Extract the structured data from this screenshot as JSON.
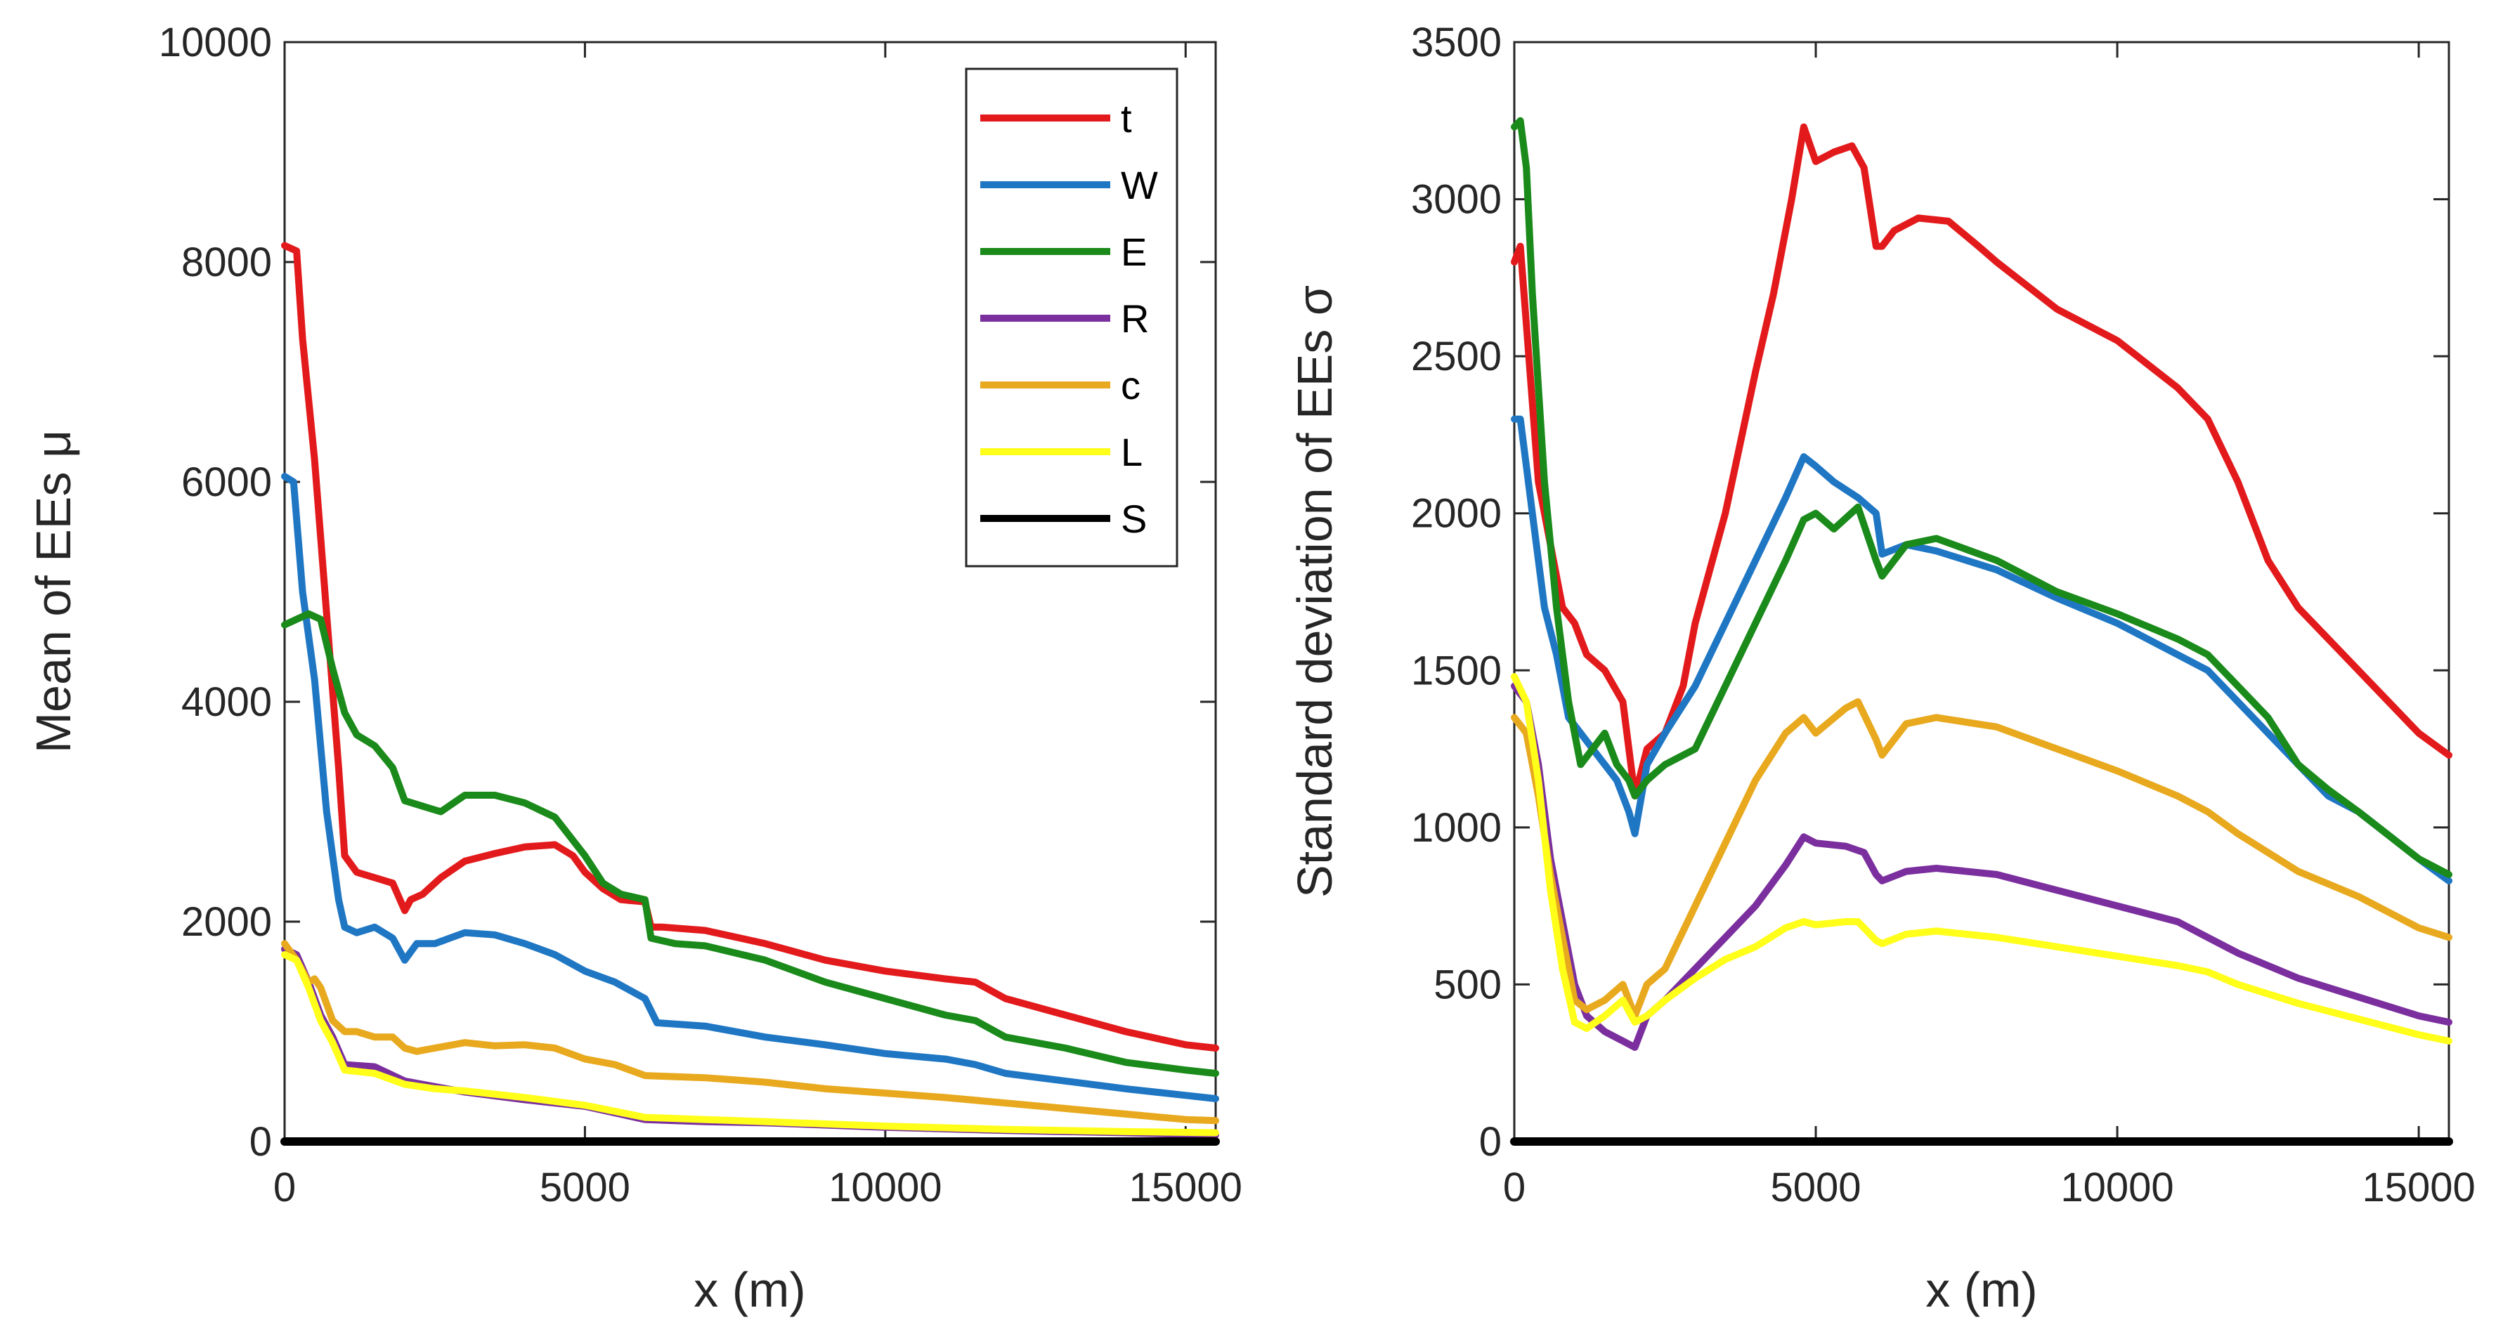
{
  "legend": [
    {
      "key": "t",
      "label": "t",
      "color": "#e31a1c"
    },
    {
      "key": "W",
      "label": "W",
      "color": "#1f77c4"
    },
    {
      "key": "E",
      "label": "E",
      "color": "#1a8a1a"
    },
    {
      "key": "R",
      "label": "R",
      "color": "#7b2f9e"
    },
    {
      "key": "c",
      "label": "c",
      "color": "#e8a91e"
    },
    {
      "key": "L",
      "label": "L",
      "color": "#ffff1a"
    },
    {
      "key": "S",
      "label": "S",
      "color": "#000000"
    }
  ],
  "chart_data": [
    {
      "type": "line",
      "xlabel": "x (m)",
      "ylabel": "Mean of EEs μ",
      "xlim": [
        0,
        15500
      ],
      "ylim": [
        0,
        10000
      ],
      "xticks": [
        0,
        5000,
        10000,
        15000
      ],
      "yticks": [
        0,
        2000,
        4000,
        6000,
        8000,
        10000
      ],
      "series": [
        {
          "name": "t",
          "x": [
            0,
            200,
            300,
            500,
            700,
            900,
            1000,
            1200,
            1500,
            1800,
            2000,
            2100,
            2300,
            2600,
            3000,
            3500,
            4000,
            4500,
            4800,
            5000,
            5300,
            5600,
            6000,
            6100,
            6300,
            7000,
            8000,
            9000,
            10000,
            11000,
            11500,
            12000,
            13000,
            14000,
            15000,
            15500
          ],
          "y": [
            8150,
            8100,
            7300,
            6200,
            4800,
            3400,
            2600,
            2450,
            2400,
            2350,
            2100,
            2200,
            2250,
            2400,
            2550,
            2620,
            2680,
            2700,
            2600,
            2450,
            2300,
            2200,
            2180,
            1950,
            1950,
            1920,
            1800,
            1650,
            1550,
            1480,
            1450,
            1300,
            1150,
            1000,
            880,
            850
          ]
        },
        {
          "name": "W",
          "x": [
            0,
            150,
            300,
            500,
            700,
            900,
            1000,
            1200,
            1500,
            1800,
            2000,
            2200,
            2500,
            3000,
            3500,
            4000,
            4500,
            5000,
            5500,
            6000,
            6200,
            7000,
            8000,
            9000,
            10000,
            11000,
            11500,
            12000,
            13000,
            14000,
            15000,
            15500
          ],
          "y": [
            6050,
            6000,
            5000,
            4200,
            3000,
            2200,
            1950,
            1900,
            1950,
            1850,
            1650,
            1800,
            1800,
            1900,
            1880,
            1800,
            1700,
            1550,
            1450,
            1300,
            1080,
            1050,
            950,
            880,
            800,
            750,
            700,
            620,
            550,
            480,
            420,
            390
          ]
        },
        {
          "name": "E",
          "x": [
            0,
            200,
            400,
            600,
            800,
            1000,
            1200,
            1500,
            1800,
            2000,
            2300,
            2600,
            3000,
            3500,
            4000,
            4500,
            5000,
            5300,
            5600,
            6000,
            6100,
            6500,
            7000,
            8000,
            9000,
            10000,
            11000,
            11500,
            12000,
            13000,
            14000,
            15000,
            15500
          ],
          "y": [
            4700,
            4750,
            4800,
            4750,
            4300,
            3900,
            3700,
            3600,
            3400,
            3100,
            3050,
            3000,
            3150,
            3150,
            3080,
            2950,
            2600,
            2350,
            2250,
            2200,
            1850,
            1800,
            1780,
            1650,
            1450,
            1300,
            1150,
            1100,
            950,
            850,
            720,
            650,
            620
          ]
        },
        {
          "name": "R",
          "x": [
            0,
            200,
            400,
            600,
            800,
            1000,
            1500,
            2000,
            2500,
            3000,
            4000,
            5000,
            6000,
            7000,
            8000,
            10000,
            12000,
            14000,
            15500
          ],
          "y": [
            1750,
            1700,
            1450,
            1150,
            950,
            700,
            680,
            550,
            500,
            450,
            380,
            320,
            200,
            180,
            170,
            130,
            100,
            80,
            60
          ]
        },
        {
          "name": "c",
          "x": [
            0,
            200,
            400,
            500,
            600,
            800,
            1000,
            1200,
            1500,
            1800,
            2000,
            2200,
            2500,
            3000,
            3500,
            4000,
            4500,
            5000,
            5500,
            6000,
            7000,
            8000,
            9000,
            10000,
            11000,
            12000,
            13000,
            14000,
            15000,
            15500
          ],
          "y": [
            1800,
            1650,
            1450,
            1480,
            1400,
            1100,
            1000,
            1000,
            950,
            950,
            850,
            820,
            850,
            900,
            870,
            880,
            850,
            750,
            700,
            600,
            580,
            540,
            480,
            440,
            400,
            350,
            300,
            250,
            200,
            190
          ]
        },
        {
          "name": "L",
          "x": [
            0,
            200,
            400,
            600,
            800,
            1000,
            1500,
            2000,
            2500,
            3000,
            4000,
            5000,
            6000,
            7000,
            8000,
            10000,
            12000,
            14000,
            15500
          ],
          "y": [
            1700,
            1650,
            1400,
            1100,
            900,
            650,
            620,
            520,
            480,
            460,
            400,
            330,
            220,
            200,
            180,
            140,
            110,
            90,
            80
          ]
        },
        {
          "name": "S",
          "x": [
            0,
            15500
          ],
          "y": [
            0,
            0
          ]
        }
      ]
    },
    {
      "type": "line",
      "xlabel": "x (m)",
      "ylabel": "Standard deviation of EEs σ",
      "xlim": [
        0,
        15500
      ],
      "ylim": [
        0,
        3500
      ],
      "xticks": [
        0,
        5000,
        10000,
        15000
      ],
      "yticks": [
        0,
        500,
        1000,
        1500,
        2000,
        2500,
        3000,
        3500
      ],
      "series": [
        {
          "name": "t",
          "x": [
            0,
            100,
            200,
            400,
            600,
            800,
            1000,
            1200,
            1500,
            1800,
            2000,
            2200,
            2500,
            2800,
            3000,
            3500,
            4000,
            4300,
            4600,
            4800,
            5000,
            5300,
            5600,
            5800,
            6000,
            6100,
            6300,
            6700,
            7200,
            7700,
            8000,
            9000,
            10000,
            11000,
            11500,
            12000,
            12500,
            13000,
            13500,
            14000,
            14500,
            15000,
            15500
          ],
          "y": [
            2800,
            2850,
            2600,
            2100,
            1900,
            1700,
            1650,
            1550,
            1500,
            1400,
            1100,
            1250,
            1300,
            1450,
            1650,
            2000,
            2450,
            2700,
            3000,
            3230,
            3120,
            3150,
            3170,
            3100,
            2850,
            2850,
            2900,
            2940,
            2930,
            2850,
            2800,
            2650,
            2550,
            2400,
            2300,
            2100,
            1850,
            1700,
            1600,
            1500,
            1400,
            1300,
            1230
          ]
        },
        {
          "name": "W",
          "x": [
            0,
            100,
            300,
            500,
            700,
            900,
            1100,
            1300,
            1500,
            1700,
            1900,
            2000,
            2200,
            2500,
            3000,
            3500,
            4000,
            4500,
            4800,
            5000,
            5300,
            5700,
            6000,
            6100,
            6500,
            7000,
            8000,
            9000,
            10000,
            11000,
            11500,
            12000,
            12500,
            13000,
            13500,
            14000,
            15000,
            15500
          ],
          "y": [
            2300,
            2300,
            2000,
            1700,
            1550,
            1350,
            1300,
            1250,
            1200,
            1150,
            1050,
            980,
            1200,
            1300,
            1450,
            1650,
            1850,
            2050,
            2180,
            2150,
            2100,
            2050,
            2000,
            1870,
            1900,
            1880,
            1820,
            1730,
            1650,
            1550,
            1500,
            1400,
            1300,
            1200,
            1100,
            1050,
            900,
            830
          ]
        },
        {
          "name": "E",
          "x": [
            0,
            100,
            200,
            300,
            500,
            700,
            900,
            1100,
            1300,
            1500,
            1700,
            1900,
            2000,
            2200,
            2500,
            3000,
            3500,
            4000,
            4500,
            4800,
            5000,
            5300,
            5700,
            6000,
            6100,
            6500,
            7000,
            8000,
            9000,
            10000,
            11000,
            11500,
            12000,
            12500,
            13000,
            13500,
            14000,
            15000,
            15500
          ],
          "y": [
            3230,
            3250,
            3100,
            2700,
            2100,
            1700,
            1400,
            1200,
            1250,
            1300,
            1200,
            1150,
            1100,
            1150,
            1200,
            1250,
            1450,
            1650,
            1850,
            1980,
            2000,
            1950,
            2020,
            1850,
            1800,
            1900,
            1920,
            1850,
            1750,
            1680,
            1600,
            1550,
            1450,
            1350,
            1200,
            1120,
            1050,
            900,
            850
          ]
        },
        {
          "name": "R",
          "x": [
            0,
            200,
            400,
            600,
            800,
            1000,
            1200,
            1500,
            1800,
            2000,
            2200,
            2500,
            3000,
            3500,
            4000,
            4500,
            4800,
            5000,
            5500,
            5800,
            6000,
            6100,
            6500,
            7000,
            8000,
            9000,
            10000,
            11000,
            11500,
            12000,
            13000,
            14000,
            15000,
            15500
          ],
          "y": [
            1450,
            1400,
            1200,
            900,
            700,
            500,
            400,
            350,
            320,
            300,
            400,
            450,
            550,
            650,
            750,
            880,
            970,
            950,
            940,
            920,
            850,
            830,
            860,
            870,
            850,
            800,
            750,
            700,
            650,
            600,
            520,
            460,
            400,
            380
          ]
        },
        {
          "name": "c",
          "x": [
            0,
            200,
            400,
            600,
            800,
            1000,
            1200,
            1500,
            1800,
            2000,
            2200,
            2500,
            3000,
            3500,
            4000,
            4500,
            4800,
            5000,
            5500,
            5700,
            6000,
            6100,
            6500,
            7000,
            8000,
            9000,
            10000,
            11000,
            11500,
            12000,
            13000,
            14000,
            15000,
            15500
          ],
          "y": [
            1350,
            1300,
            1100,
            850,
            650,
            450,
            420,
            450,
            500,
            400,
            500,
            550,
            750,
            950,
            1150,
            1300,
            1350,
            1300,
            1380,
            1400,
            1280,
            1230,
            1330,
            1350,
            1320,
            1250,
            1180,
            1100,
            1050,
            980,
            860,
            780,
            680,
            650
          ]
        },
        {
          "name": "L",
          "x": [
            0,
            200,
            400,
            600,
            800,
            1000,
            1200,
            1500,
            1800,
            2000,
            2200,
            2500,
            3000,
            3500,
            4000,
            4500,
            4800,
            5000,
            5500,
            5700,
            6000,
            6100,
            6500,
            7000,
            8000,
            9000,
            10000,
            11000,
            11500,
            12000,
            13000,
            14000,
            15000,
            15500
          ],
          "y": [
            1480,
            1400,
            1150,
            800,
            550,
            380,
            360,
            400,
            450,
            380,
            400,
            450,
            520,
            580,
            620,
            680,
            700,
            690,
            700,
            700,
            640,
            630,
            660,
            670,
            650,
            620,
            590,
            560,
            540,
            500,
            440,
            390,
            340,
            320
          ]
        },
        {
          "name": "S",
          "x": [
            0,
            15500
          ],
          "y": [
            0,
            0
          ]
        }
      ]
    }
  ]
}
